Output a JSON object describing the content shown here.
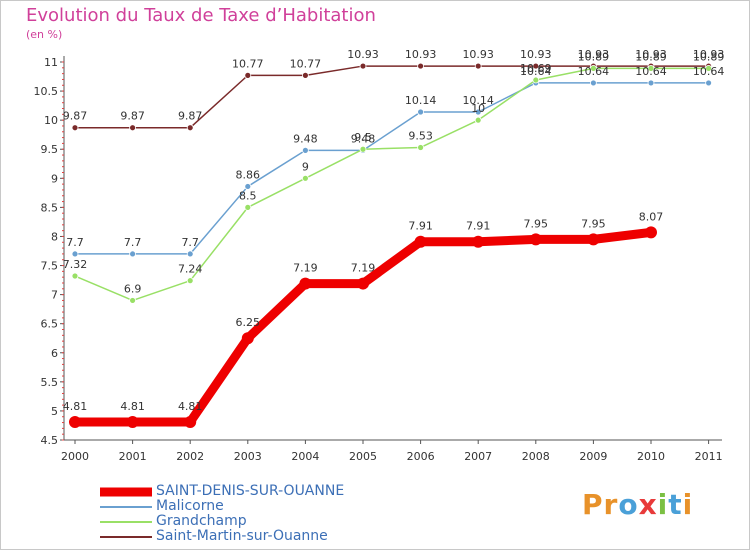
{
  "chart_data": {
    "type": "line",
    "title": "Evolution du Taux de Taxe d’Habitation",
    "ylabel": "(en %)",
    "xlabel": "",
    "x": [
      "2000",
      "2001",
      "2002",
      "2003",
      "2004",
      "2005",
      "2006",
      "2007",
      "2008",
      "2009",
      "2010",
      "2011"
    ],
    "ylim": [
      4.5,
      11
    ],
    "yticks": [
      "4.5",
      "5",
      "5.5",
      "6",
      "6.5",
      "7",
      "7.5",
      "8",
      "8.5",
      "9",
      "9.5",
      "10",
      "10.5",
      "11"
    ],
    "grid": false,
    "legend_position": "bottom-left",
    "series": [
      {
        "name": "SAINT-DENIS-SUR-OUANNE",
        "color": "#ee0000",
        "values": [
          4.81,
          4.81,
          4.81,
          6.25,
          7.19,
          7.19,
          7.91,
          7.91,
          7.95,
          7.95,
          8.07,
          null
        ],
        "labels": [
          "4.81",
          "4.81",
          "4.81",
          "6.25",
          "7.19",
          "7.19",
          "7.91",
          "7.91",
          "7.95",
          "7.95",
          "8.07",
          ""
        ]
      },
      {
        "name": "Malicorne",
        "color": "#6aa0d0",
        "values": [
          7.7,
          7.7,
          7.7,
          8.86,
          9.48,
          9.48,
          10.14,
          10.14,
          10.64,
          10.64,
          10.64,
          10.64
        ],
        "labels": [
          "7.7",
          "7.7",
          "7.7",
          "8.86",
          "9.48",
          "9.48",
          "10.14",
          "10.14",
          "10.64",
          "10.64",
          "10.64",
          "10.64"
        ]
      },
      {
        "name": "Grandchamp",
        "color": "#99e066",
        "values": [
          7.32,
          6.9,
          7.24,
          8.5,
          9.0,
          9.5,
          9.53,
          10.0,
          10.69,
          10.89,
          10.89,
          10.89
        ],
        "labels": [
          "7.32",
          "6.9",
          "7.24",
          "8.5",
          "9",
          "9.5",
          "9.53",
          "10",
          "10.69",
          "10.89",
          "10.89",
          "10.89"
        ]
      },
      {
        "name": "Saint-Martin-sur-Ouanne",
        "color": "#7a2a2a",
        "values": [
          9.87,
          9.87,
          9.87,
          10.77,
          10.77,
          10.93,
          10.93,
          10.93,
          10.93,
          10.93,
          10.93,
          10.93
        ],
        "labels": [
          "9.87",
          "9.87",
          "9.87",
          "10.77",
          "10.77",
          "10.93",
          "10.93",
          "10.93",
          "10.93",
          "10.93",
          "10.93",
          "10.93"
        ]
      }
    ]
  },
  "legend": {
    "items": [
      {
        "label": "SAINT-DENIS-SUR-OUANNE",
        "color": "#ee0000"
      },
      {
        "label": "Malicorne",
        "color": "#6aa0d0"
      },
      {
        "label": "Grandchamp",
        "color": "#99e066"
      },
      {
        "label": "Saint-Martin-sur-Ouanne",
        "color": "#7a2a2a"
      }
    ]
  },
  "logo": {
    "text": "Proxiti",
    "colors": [
      "#e8922a",
      "#e8922a",
      "#4aa0d8",
      "#e83a3a",
      "#7bc043",
      "#4aa0d8",
      "#e8922a"
    ]
  }
}
